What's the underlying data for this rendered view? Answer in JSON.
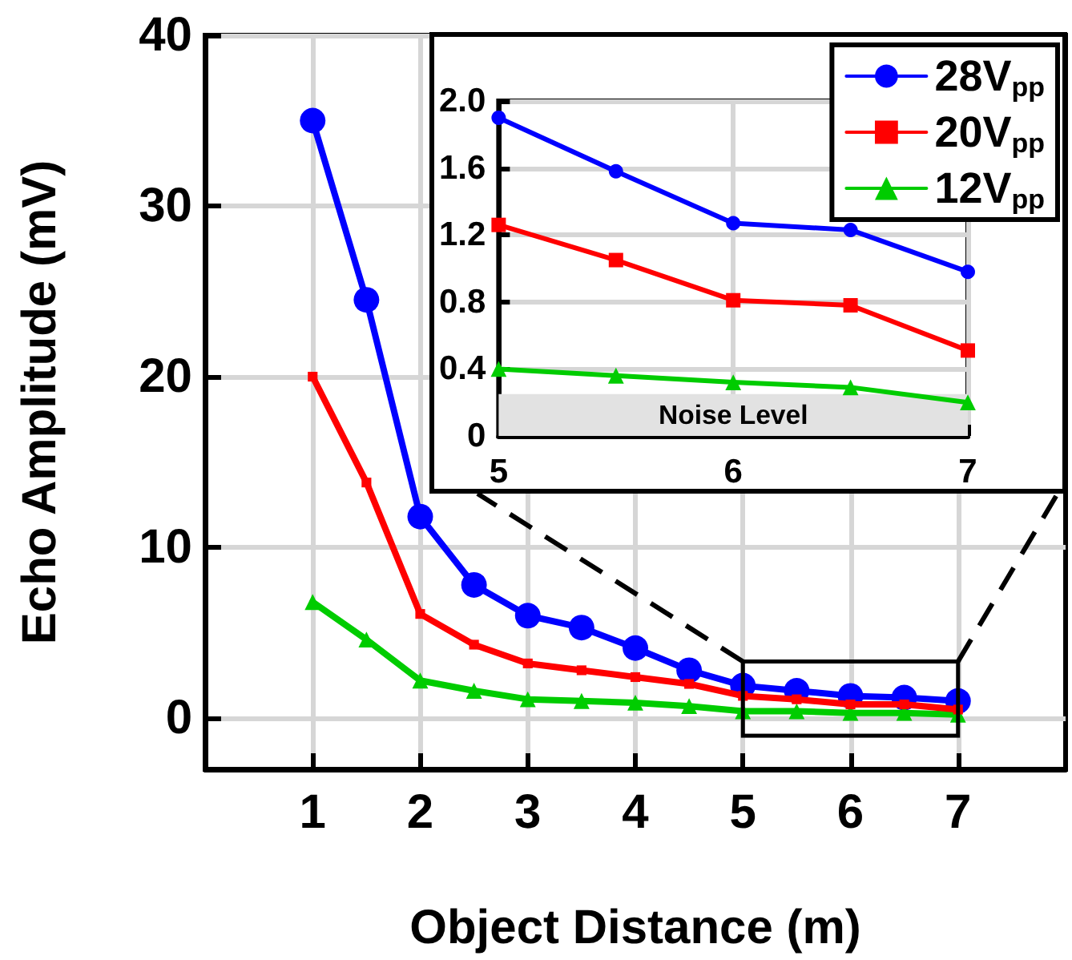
{
  "chart_data": [
    {
      "type": "line",
      "xlabel": "Object Distance (m)",
      "ylabel": "Echo Amplitude (mV)",
      "x": [
        1,
        1.5,
        2,
        2.5,
        3,
        3.5,
        4,
        4.5,
        5,
        5.5,
        6,
        6.5,
        7
      ],
      "series": [
        {
          "color": "#0000ff",
          "marker": "circle",
          "values": [
            35,
            24.5,
            11.8,
            7.8,
            6.0,
            5.3,
            4.1,
            2.8,
            1.9,
            1.6,
            1.3,
            1.2,
            1.0
          ]
        },
        {
          "color": "#ff0000",
          "marker": "square",
          "values": [
            20,
            13.8,
            6.1,
            4.3,
            3.2,
            2.8,
            2.4,
            2.0,
            1.3,
            1.1,
            0.8,
            0.8,
            0.5
          ]
        },
        {
          "color": "#00cc00",
          "marker": "triangle",
          "values": [
            6.8,
            4.6,
            2.2,
            1.6,
            1.1,
            1.0,
            0.9,
            0.7,
            0.4,
            0.4,
            0.3,
            0.3,
            0.2
          ]
        }
      ],
      "xlim": [
        0,
        8
      ],
      "xticks": [
        1,
        2,
        3,
        4,
        5,
        6,
        7
      ],
      "ylim": [
        -3,
        40
      ],
      "yticks": [
        0,
        10,
        20,
        30,
        40
      ],
      "grid": true,
      "line_style": "solid"
    },
    {
      "type": "line",
      "x": [
        5,
        5.5,
        6,
        6.5,
        7
      ],
      "series": [
        {
          "name": "28V$_{pp}$",
          "color": "#0000ff",
          "marker": "circle",
          "values": [
            1.9,
            1.58,
            1.27,
            1.23,
            0.98
          ]
        },
        {
          "name": "20V$_{pp}$",
          "color": "#ff0000",
          "marker": "square",
          "values": [
            1.26,
            1.05,
            0.81,
            0.78,
            0.51
          ]
        },
        {
          "name": "12V$_{pp}$",
          "color": "#00cc00",
          "marker": "triangle",
          "values": [
            0.4,
            0.36,
            0.32,
            0.29,
            0.2
          ]
        }
      ],
      "xlim": [
        5,
        7
      ],
      "xticks": [
        5,
        6,
        7
      ],
      "ylim": [
        0,
        2
      ],
      "yticks": [
        0,
        {
          "value": 0.4,
          "label": "0.4"
        },
        {
          "value": 0.8,
          "label": "0.8"
        },
        {
          "value": 1.2,
          "label": "1.2"
        },
        {
          "value": 1.6,
          "label": "1.6"
        },
        {
          "value": 2,
          "label": "2.0"
        }
      ],
      "bands": [
        {
          "axis": "y",
          "from": 0,
          "to": 0.25,
          "label": "Noise Level",
          "color": "#e2e2e2"
        }
      ],
      "grid": true,
      "legend": "top right",
      "line_style": "solid"
    }
  ]
}
